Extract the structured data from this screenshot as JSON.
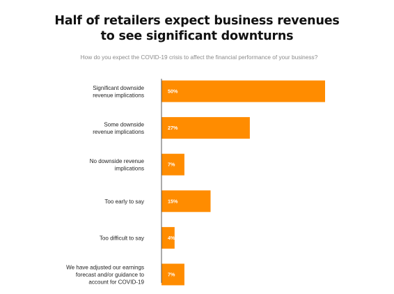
{
  "header": {
    "title_line1": "Half of retailers expect business revenues",
    "title_line2": "to see significant downturns",
    "subtitle": "How do you expect the COVID-19 crisis to affect the financial performance of your business?"
  },
  "colors": {
    "bar": "#FF8C00",
    "axis": "#555555"
  },
  "chart_data": {
    "type": "bar",
    "orientation": "horizontal",
    "title": "Half of retailers expect business revenues to see significant downturns",
    "subtitle": "How do you expect the COVID-19 crisis to affect the financial performance of your business?",
    "categories": [
      [
        "Significant downside",
        "revenue implications"
      ],
      [
        "Some downside",
        "revenue implications"
      ],
      [
        "No downside revenue",
        "implications"
      ],
      [
        "Too early to say"
      ],
      [
        "Too difficult to say"
      ],
      [
        "We have adjusted our earnings",
        "forecast and/or guidance to",
        "account for COVID-19"
      ]
    ],
    "values": [
      50,
      27,
      7,
      15,
      4,
      7
    ],
    "value_labels": [
      "50%",
      "27%",
      "7%",
      "15%",
      "4%",
      "7%"
    ],
    "xlim": [
      0,
      50
    ],
    "grid": false,
    "legend": "none"
  }
}
